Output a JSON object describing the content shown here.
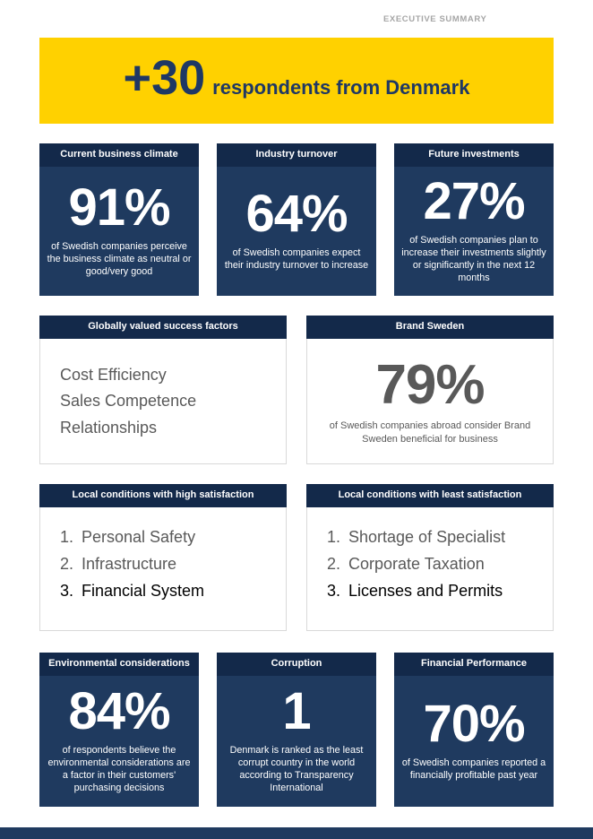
{
  "meta": {
    "eyebrow": "EXECUTIVE SUMMARY"
  },
  "banner": {
    "number": "+30",
    "text": "respondents from Denmark"
  },
  "list_numbers": [
    "1.",
    "2.",
    "3."
  ],
  "row1": [
    {
      "header": "Current business climate",
      "value": "91%",
      "desc": "of Swedish companies perceive the business climate as neutral or good/very good"
    },
    {
      "header": "Industry turnover",
      "value": "64%",
      "desc": "of Swedish companies expect their industry turnover to increase"
    },
    {
      "header": "Future investments",
      "value": "27%",
      "desc": "of Swedish companies plan to increase their investments slightly or significantly in the next 12 months"
    }
  ],
  "row2": {
    "success": {
      "header": "Globally valued success factors",
      "items": [
        "Cost Efficiency",
        "Sales Competence",
        "Relationships"
      ]
    },
    "brand": {
      "header": "Brand Sweden",
      "value": "79%",
      "desc": "of Swedish companies abroad consider Brand Sweden beneficial for business"
    }
  },
  "row3": {
    "high": {
      "header": "Local conditions with high satisfaction",
      "items": [
        "Personal Safety",
        "Infrastructure",
        "Financial System"
      ]
    },
    "least": {
      "header": "Local conditions with least satisfaction",
      "items": [
        "Shortage of Specialist",
        "Corporate Taxation",
        "Licenses and Permits"
      ]
    }
  },
  "row4": [
    {
      "header": "Environmental considerations",
      "value": "84%",
      "desc": "of respondents believe the environmental considerations are a factor in their customers' purchasing decisions"
    },
    {
      "header": "Corruption",
      "value": "1",
      "desc": "Denmark is ranked as the least corrupt country in the world according to Transparency International"
    },
    {
      "header": "Financial Performance",
      "value": "70%",
      "desc": "of Swedish companies reported a financially profitable past year"
    }
  ],
  "colors": {
    "navy_body": "#1F3A5F",
    "navy_header": "#13294A",
    "banner_yellow": "#FFD100",
    "banner_text_navy": "#1F3864",
    "gray_text": "#595959",
    "eyebrow_gray": "#A6A6A6"
  }
}
